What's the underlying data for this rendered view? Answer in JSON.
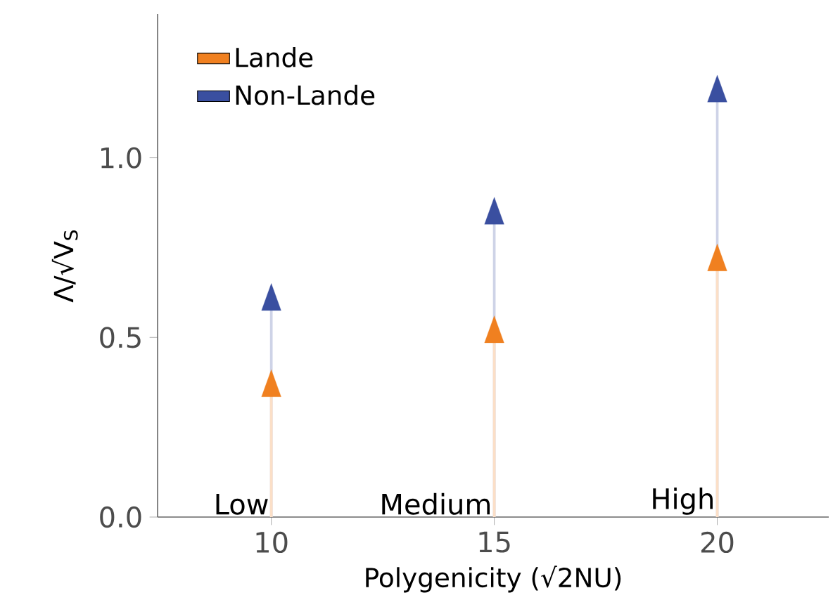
{
  "chart_data": {
    "type": "lollipop",
    "xlabel": "Polygenicity (√2NU)",
    "ylabel": "Λ/√V$_{S}$",
    "x": [
      10,
      15,
      20
    ],
    "series": [
      {
        "name": "Lande",
        "color": "#f08020",
        "values": [
          0.36,
          0.51,
          0.71
        ]
      },
      {
        "name": "Non-Lande",
        "color": "#3a4fa0",
        "values": [
          0.6,
          0.84,
          1.18
        ]
      }
    ],
    "xlim": [
      7.45,
      22.5
    ],
    "ylim": [
      0,
      1.4
    ],
    "xticks": [
      10,
      15,
      20
    ],
    "yticks": [
      {
        "value": 0,
        "label": "0.0"
      },
      {
        "value": 0.5,
        "label": "0.5"
      },
      {
        "value": 1,
        "label": "1.0"
      }
    ],
    "legend": "top left",
    "marker": "triangle",
    "annotations": [
      "Low",
      "Medium",
      "High"
    ]
  }
}
